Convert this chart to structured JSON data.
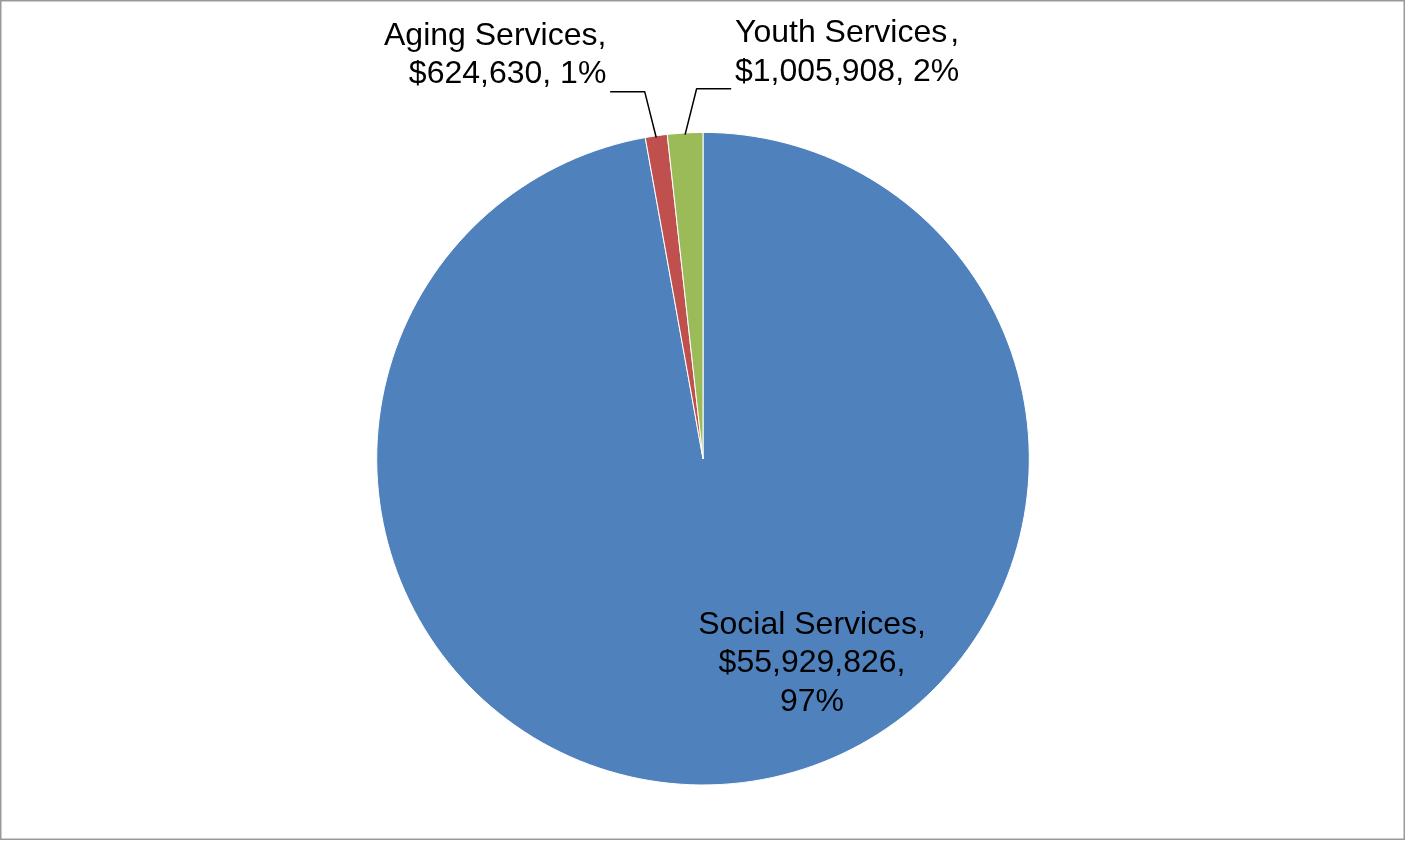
{
  "chart_data": {
    "type": "pie",
    "categories": [
      "Social Services",
      "Aging Services",
      "Youth Services"
    ],
    "values": [
      55929826,
      624630,
      1005908
    ],
    "colors": [
      "#4f81bd",
      "#c0504d",
      "#9bbb59"
    ],
    "value_labels": [
      ",\n$55,929,826,\n97%",
      ",\n$624,630, 1%",
      ",\n$1,005,908, 2%"
    ]
  }
}
